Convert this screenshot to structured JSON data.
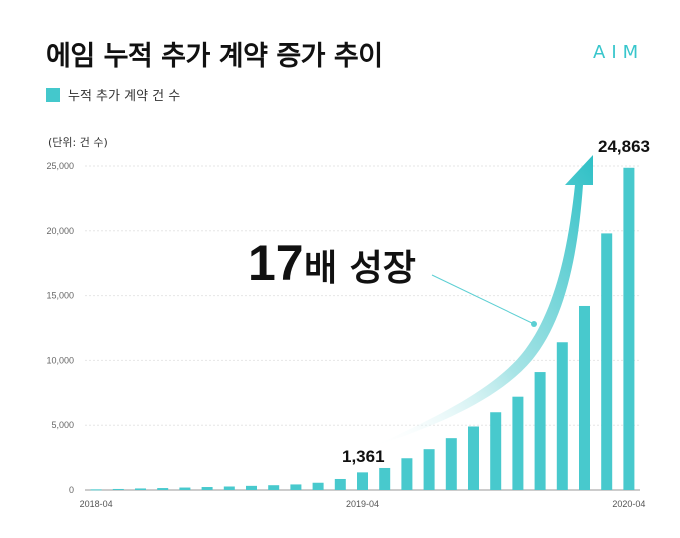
{
  "header": {
    "title": "에임 누적 추가 계약 증가 추이",
    "brand": "AIM"
  },
  "legend": {
    "label": "누적 추가 계약 건 수"
  },
  "unit_label": "(단위: 건 수)",
  "annotations": {
    "start_value": "1,361",
    "end_value": "24,863",
    "growth_number": "17",
    "growth_word": "배 성장"
  },
  "colors": {
    "bar": "#48c9cd",
    "brand": "#38c6cc"
  },
  "chart_data": {
    "type": "bar",
    "categories": [
      "2018-04",
      "2018-05",
      "2018-06",
      "2018-07",
      "2018-08",
      "2018-09",
      "2018-10",
      "2018-11",
      "2018-12",
      "2019-01",
      "2019-02",
      "2019-03",
      "2019-04",
      "2019-05",
      "2019-06",
      "2019-07",
      "2019-08",
      "2019-09",
      "2019-10",
      "2019-11",
      "2019-12",
      "2020-01",
      "2020-02",
      "2020-03",
      "2020-04"
    ],
    "x_tick_labels": [
      "2018-04",
      "2019-04",
      "2020-04"
    ],
    "values": [
      50,
      80,
      120,
      150,
      190,
      230,
      270,
      320,
      370,
      430,
      560,
      850,
      1361,
      1700,
      2450,
      3150,
      4000,
      4900,
      6000,
      7200,
      9100,
      11400,
      14200,
      19800,
      24863
    ],
    "ylim": [
      0,
      25000
    ],
    "y_ticks": [
      0,
      5000,
      10000,
      15000,
      20000,
      25000
    ],
    "y_tick_labels": [
      "0",
      "5,000",
      "10,000",
      "15,000",
      "20,000",
      "25,000"
    ],
    "grid": true
  }
}
